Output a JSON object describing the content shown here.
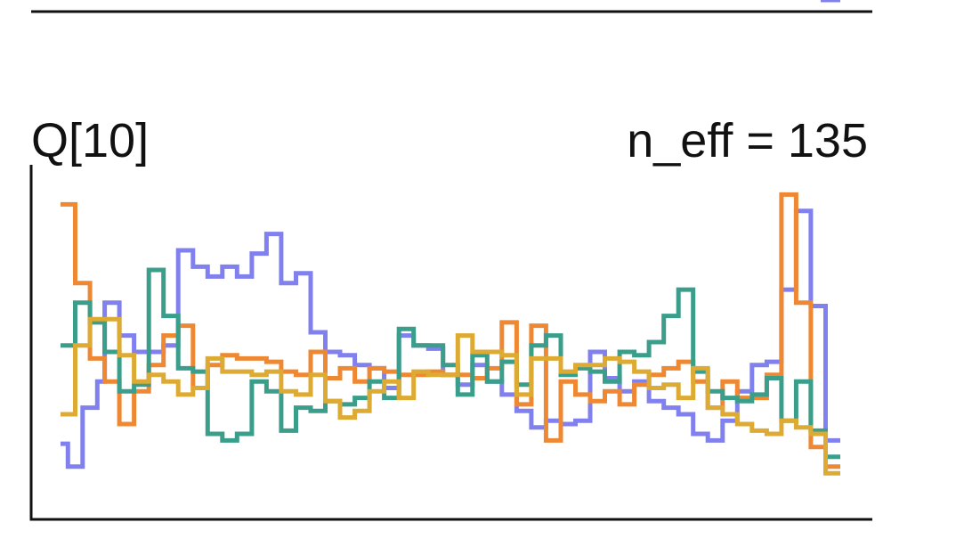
{
  "chart_data": {
    "type": "line",
    "title": "Q[10]",
    "subtitle": "n_eff = 135",
    "xlabel": "",
    "ylabel": "",
    "grid": false,
    "legend": "none",
    "step": true,
    "ylim": [
      0,
      100
    ],
    "series": [
      {
        "color": "#8080ee",
        "values": [
          19,
          12,
          12,
          30,
          30,
          38,
          62,
          62,
          52,
          52,
          47,
          47,
          47,
          47,
          49,
          49,
          78,
          78,
          73,
          73,
          70,
          70,
          73,
          73,
          70,
          70,
          77,
          77,
          83,
          83,
          68,
          68,
          71,
          71,
          53,
          53,
          47,
          47,
          46,
          46,
          43,
          43,
          42,
          42,
          36,
          36,
          52,
          52,
          49,
          49,
          48,
          48,
          40,
          40,
          37,
          37,
          43,
          43,
          38,
          38,
          34,
          34,
          29,
          29,
          24,
          24,
          26,
          26,
          25,
          25,
          26,
          26,
          47,
          47,
          39,
          39,
          35,
          35,
          38,
          38,
          32,
          32,
          30,
          30,
          28,
          28,
          22,
          22,
          20,
          20,
          26,
          26,
          35,
          35,
          43,
          43,
          44,
          44,
          66,
          66,
          90,
          90,
          61,
          61,
          20,
          20
        ]
      },
      {
        "color": "#ee8833",
        "values": [
          92,
          92,
          68,
          68,
          45,
          45,
          38,
          38,
          25,
          25,
          35,
          35,
          43,
          43,
          52,
          52,
          55,
          55,
          36,
          36,
          43,
          43,
          46,
          46,
          45,
          45,
          45,
          45,
          44,
          44,
          41,
          41,
          40,
          40,
          47,
          47,
          39,
          39,
          42,
          42,
          38,
          38,
          42,
          42,
          41,
          41,
          40,
          40,
          40,
          40,
          41,
          41,
          40,
          40,
          40,
          40,
          39,
          39,
          42,
          42,
          56,
          56,
          31,
          31,
          55,
          55,
          20,
          20,
          38,
          38,
          34,
          34,
          32,
          32,
          35,
          35,
          31,
          31,
          37,
          37,
          40,
          40,
          42,
          42,
          44,
          44,
          38,
          38,
          30,
          30,
          38,
          38,
          33,
          33,
          33,
          33,
          40,
          40,
          95,
          95,
          62,
          62,
          18,
          18,
          12,
          12
        ]
      },
      {
        "color": "#3a9e8a",
        "values": [
          49,
          49,
          62,
          62,
          56,
          56,
          47,
          47,
          35,
          35,
          37,
          37,
          72,
          72,
          58,
          58,
          42,
          42,
          41,
          41,
          22,
          22,
          20,
          20,
          22,
          22,
          38,
          38,
          35,
          35,
          23,
          23,
          30,
          30,
          29,
          29,
          32,
          32,
          31,
          31,
          33,
          33,
          38,
          38,
          33,
          33,
          54,
          54,
          49,
          49,
          49,
          49,
          43,
          43,
          34,
          34,
          46,
          46,
          38,
          38,
          44,
          44,
          37,
          37,
          49,
          49,
          52,
          52,
          40,
          40,
          42,
          42,
          41,
          41,
          38,
          38,
          47,
          47,
          46,
          46,
          50,
          50,
          58,
          58,
          66,
          66,
          41,
          41,
          35,
          35,
          33,
          33,
          32,
          32,
          34,
          34,
          39,
          39,
          26,
          26,
          38,
          38,
          23,
          23,
          15,
          15
        ]
      },
      {
        "color": "#ddaa33",
        "values": [
          28,
          28,
          49,
          49,
          57,
          57,
          57,
          57,
          46,
          46,
          38,
          38,
          40,
          40,
          38,
          38,
          34,
          34,
          36,
          36,
          45,
          45,
          41,
          41,
          41,
          41,
          40,
          40,
          41,
          41,
          35,
          35,
          34,
          34,
          40,
          40,
          32,
          32,
          27,
          27,
          29,
          29,
          35,
          35,
          38,
          38,
          33,
          33,
          41,
          41,
          40,
          40,
          40,
          40,
          52,
          52,
          47,
          47,
          47,
          47,
          46,
          46,
          34,
          34,
          45,
          45,
          45,
          45,
          41,
          41,
          43,
          43,
          43,
          43,
          45,
          45,
          44,
          44,
          41,
          41,
          36,
          36,
          37,
          37,
          33,
          33,
          42,
          42,
          30,
          30,
          28,
          28,
          25,
          25,
          23,
          23,
          22,
          22,
          26,
          26,
          24,
          24,
          22,
          22,
          10,
          10
        ]
      }
    ]
  }
}
